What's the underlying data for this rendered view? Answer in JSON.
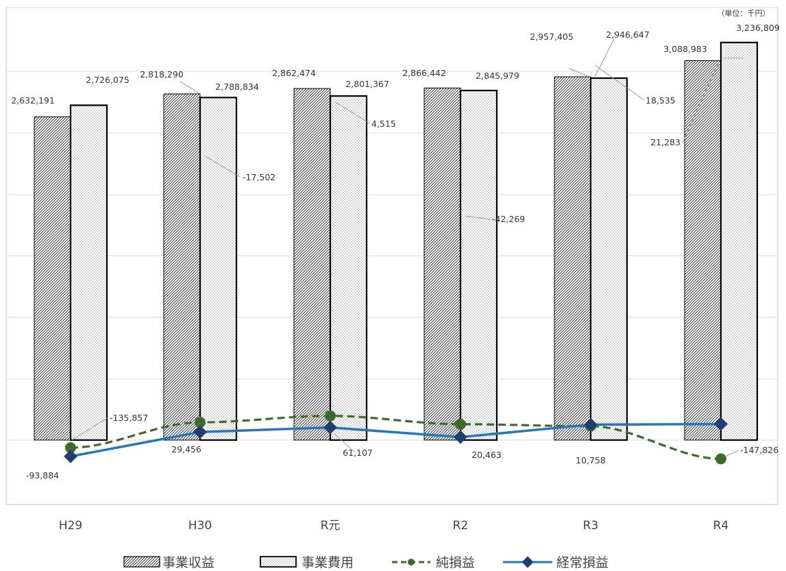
{
  "chart_data": {
    "type": "bar",
    "unit_label": "（単位：千円）",
    "categories": [
      "H29",
      "H30",
      "R元",
      "R2",
      "R3",
      "R4"
    ],
    "series": [
      {
        "name": "事業収益",
        "type": "bar",
        "pattern": "diagonal-hatch",
        "values": [
          2632191,
          2818290,
          2862474,
          2866442,
          2957405,
          3088983
        ],
        "labels": [
          "2,632,191",
          "2,818,290",
          "2,862,474",
          "2,866,442",
          "2,957,405",
          "3,088,983"
        ]
      },
      {
        "name": "事業費用",
        "type": "bar",
        "pattern": "dots",
        "values": [
          2726075,
          2788834,
          2801367,
          2845979,
          2946647,
          3236809
        ],
        "labels": [
          "2,726,075",
          "2,788,834",
          "2,801,367",
          "2,845,979",
          "2,946,647",
          "3,236,809"
        ]
      },
      {
        "name": "純損益",
        "type": "line",
        "style": "dashed",
        "color": "#3f6b2a",
        "marker": "circle",
        "values": [
          -93884,
          29456,
          61107,
          20463,
          10758,
          -147826
        ],
        "labels": [
          "-93,884",
          "29,456",
          "61,107",
          "20,463",
          "10,758",
          "-147,826"
        ]
      },
      {
        "name": "経常損益",
        "type": "line",
        "style": "solid",
        "color": "#1f78c1",
        "marker": "diamond",
        "values": [
          -135857,
          -17502,
          4515,
          -42269,
          18535,
          21283
        ],
        "labels": [
          "-135,857",
          "-17,502",
          "4,515",
          "-42,269",
          "18,535",
          "21,283"
        ]
      }
    ],
    "grid": true,
    "legend": "bottom"
  },
  "colors": {
    "line_net": "#3f6b2a",
    "line_ordinary": "#1f78c1",
    "marker_ordinary": "#1f3f73",
    "bar_outline": "#000000"
  }
}
